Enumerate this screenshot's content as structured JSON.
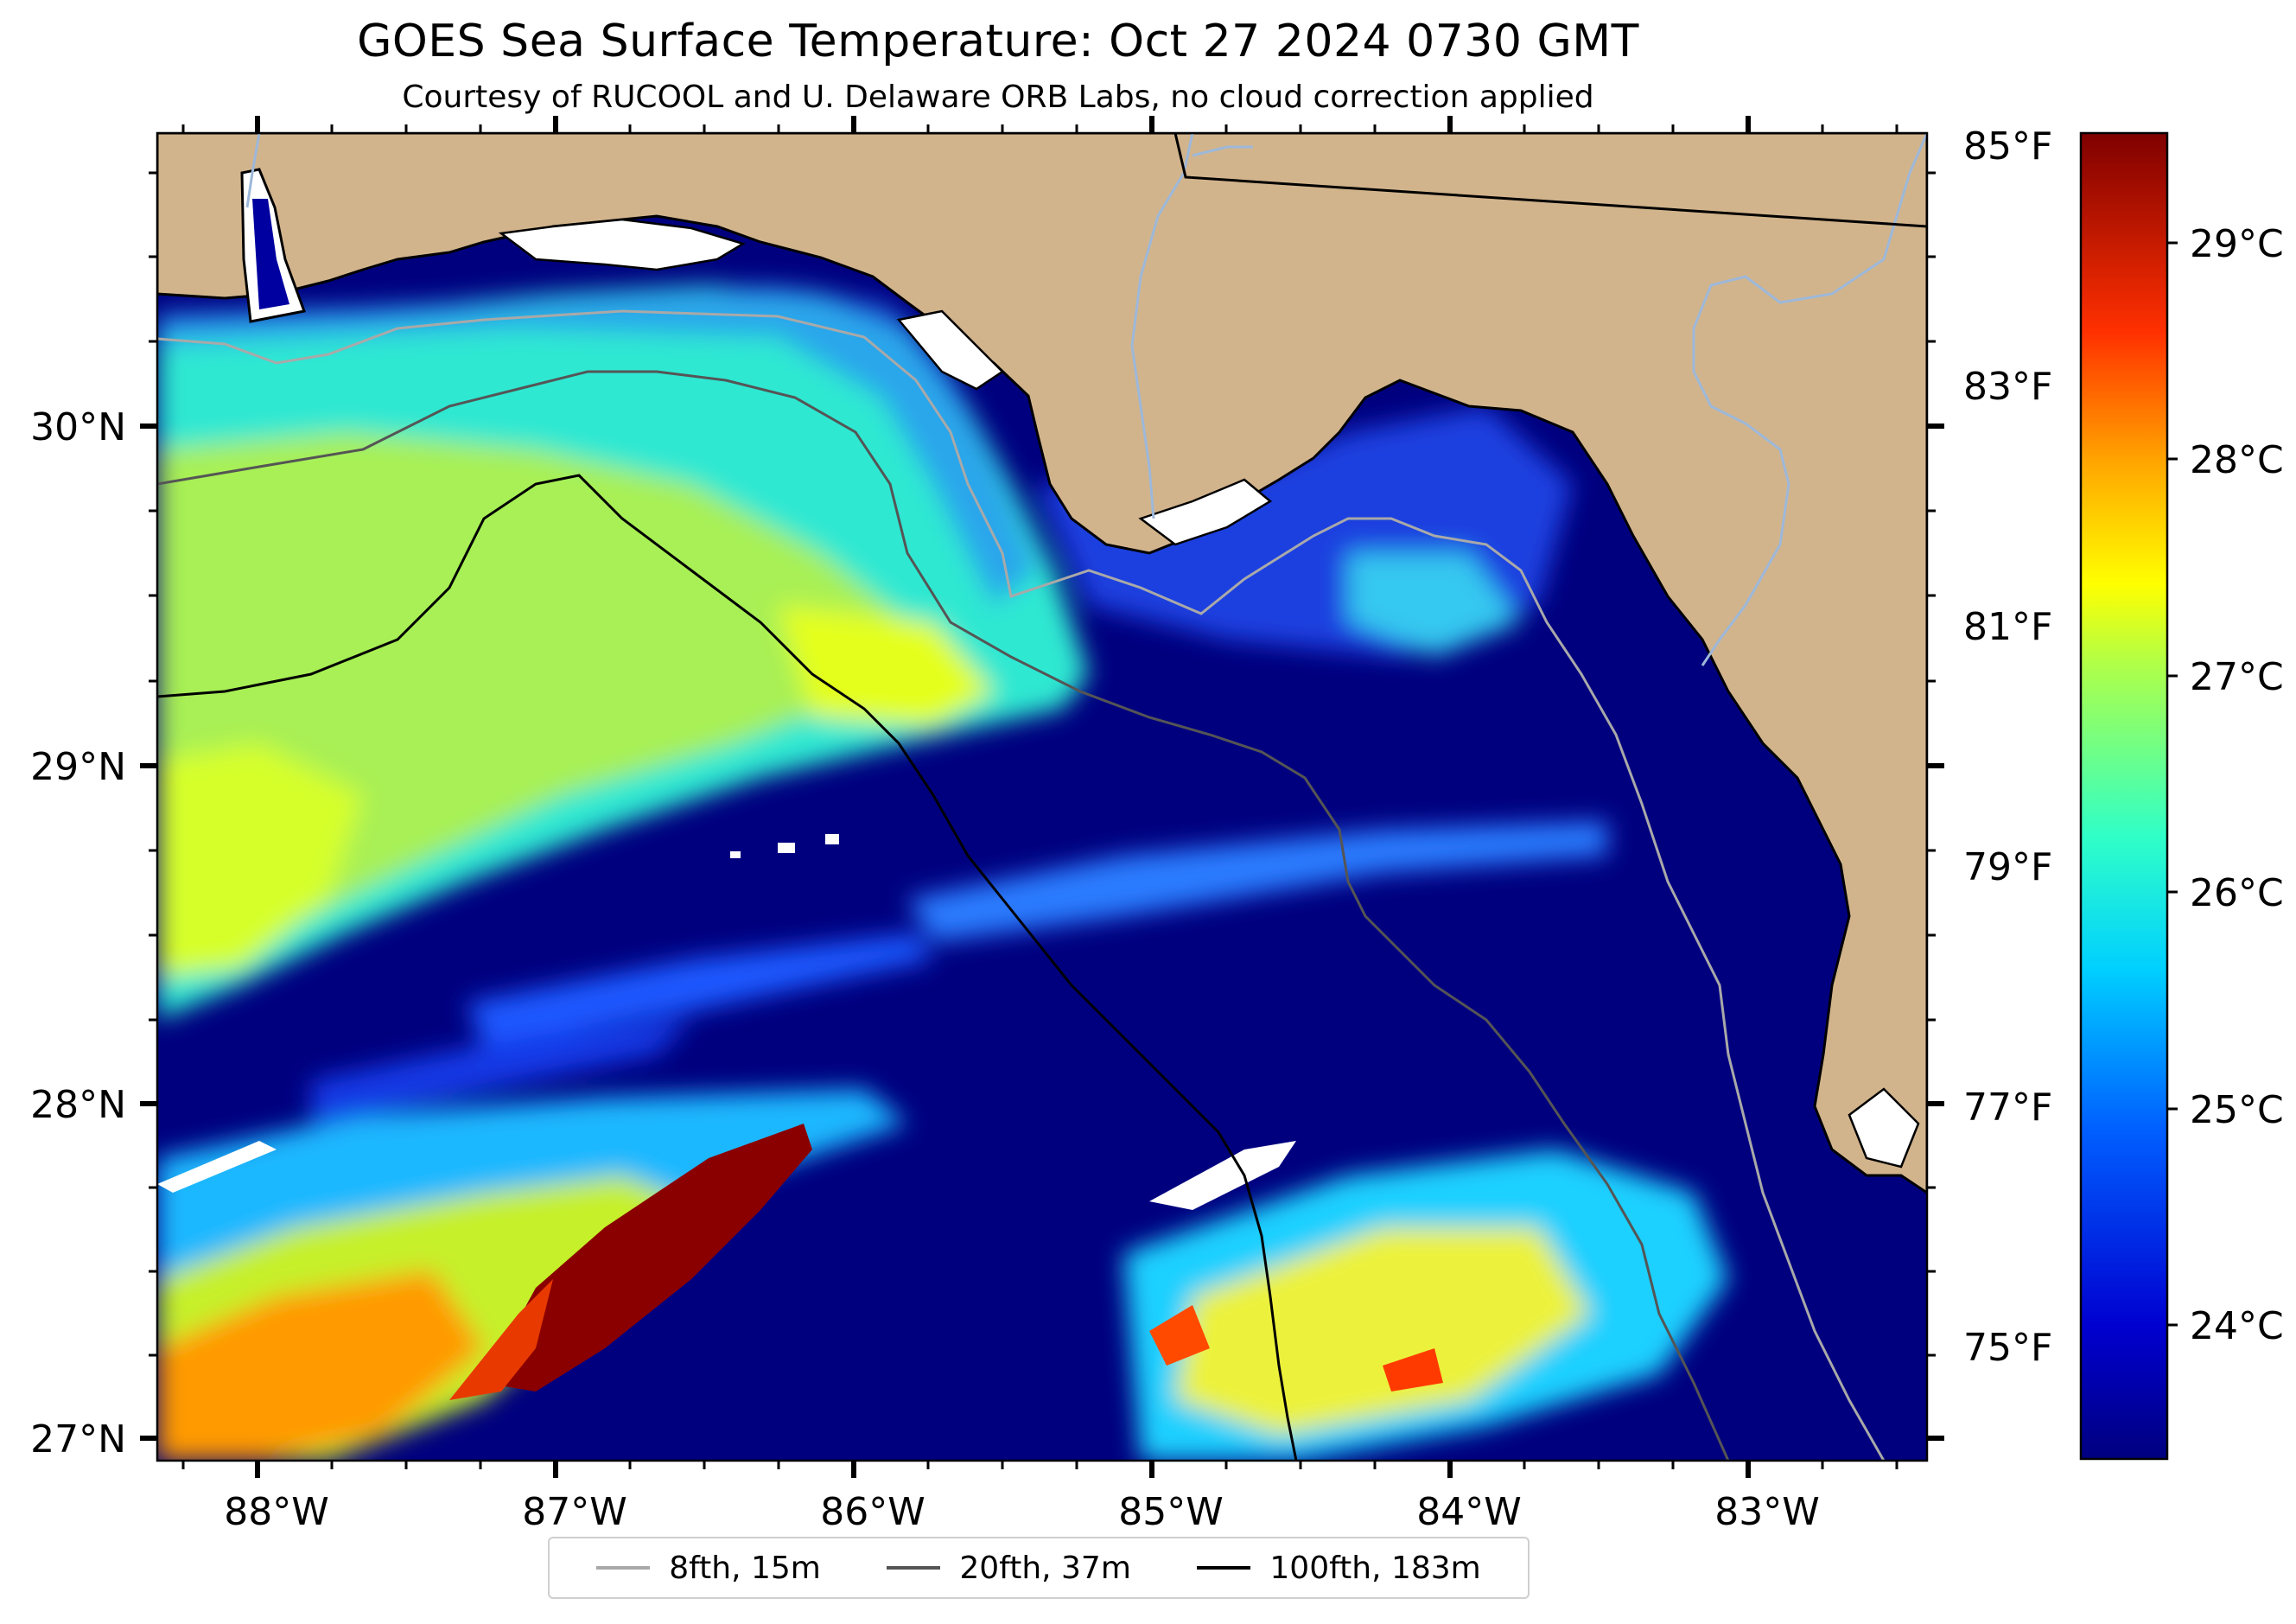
{
  "title": "GOES Sea Surface Temperature: Oct 27 2024 0730 GMT",
  "subtitle": "Courtesy of RUCOOL and U. Delaware ORB Labs, no cloud correction applied",
  "axes": {
    "longitude_labels": [
      "88°W",
      "87°W",
      "86°W",
      "85°W",
      "84°W",
      "83°W"
    ],
    "latitude_labels": [
      "30°N",
      "29°N",
      "28°N",
      "27°N"
    ]
  },
  "fahrenheit_labels": [
    "85°F",
    "83°F",
    "81°F",
    "79°F",
    "77°F",
    "75°F"
  ],
  "colorbar": {
    "celsius_labels": [
      "29°C",
      "28°C",
      "27°C",
      "26°C",
      "25°C",
      "24°C"
    ],
    "colors": [
      "#00007f",
      "#0000ff",
      "#007fff",
      "#00ffff",
      "#7fff7f",
      "#ffff00",
      "#ff7f00",
      "#ff0000",
      "#7f0000"
    ]
  },
  "legend": [
    {
      "label": "8fth, 15m",
      "color": "#a9a9a9"
    },
    {
      "label": "20fth, 37m",
      "color": "#555555"
    },
    {
      "label": "100fth, 183m",
      "color": "#000000"
    }
  ],
  "colors": {
    "land": "#d2b48c",
    "deep_water": "#00007f",
    "rivers": "#9db8d9",
    "no_data": "#ffffff"
  }
}
